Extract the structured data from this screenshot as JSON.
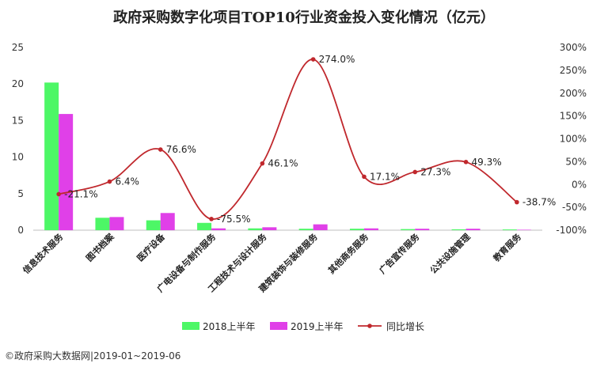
{
  "title": "政府采购数字化项目TOP10行业资金投入变化情况（亿元）",
  "footer": "©政府采购大数据网|2019-01~2019-06",
  "colors": {
    "s2018": "#4df766",
    "s2019": "#e040e8",
    "growth": "#c0282d"
  },
  "chart_data": {
    "type": "bar",
    "title": "政府采购数字化项目TOP10行业资金投入变化情况（亿元）",
    "categories": [
      "信息技术服务",
      "图书档案",
      "医疗设备",
      "广电设备与制作服务",
      "工程技术与设计服务",
      "建筑装饰与装修服务",
      "其他商务服务",
      "广告宣传服务",
      "公共设施管理",
      "教育服务"
    ],
    "series": [
      {
        "name": "2018上半年",
        "type": "bar",
        "axis": "left",
        "values": [
          20.2,
          1.7,
          1.35,
          1.0,
          0.25,
          0.2,
          0.2,
          0.15,
          0.12,
          0.1
        ]
      },
      {
        "name": "2019上半年",
        "type": "bar",
        "axis": "left",
        "values": [
          15.9,
          1.8,
          2.35,
          0.25,
          0.4,
          0.8,
          0.25,
          0.2,
          0.2,
          0.06
        ]
      },
      {
        "name": "同比增长",
        "type": "line",
        "axis": "right",
        "values": [
          -21.1,
          6.4,
          76.6,
          -75.5,
          46.1,
          274.0,
          17.1,
          27.3,
          49.3,
          -38.7
        ]
      }
    ],
    "data_labels": [
      "-21.1%",
      "6.4%",
      "76.6%",
      "-75.5%",
      "46.1%",
      "274.0%",
      "17.1%",
      "27.3%",
      "49.3%",
      "-38.7%"
    ],
    "left_axis": {
      "ylim": [
        0,
        25
      ],
      "ticks": [
        "0",
        "5",
        "10",
        "15",
        "20",
        "25"
      ]
    },
    "right_axis": {
      "ylim": [
        -100,
        300
      ],
      "ticks": [
        "-100%",
        "-50%",
        "0%",
        "50%",
        "100%",
        "150%",
        "200%",
        "250%",
        "300%"
      ]
    },
    "legend": {
      "position": "bottom",
      "items": [
        "2018上半年",
        "2019上半年",
        "同比增长"
      ]
    },
    "grid": false
  }
}
